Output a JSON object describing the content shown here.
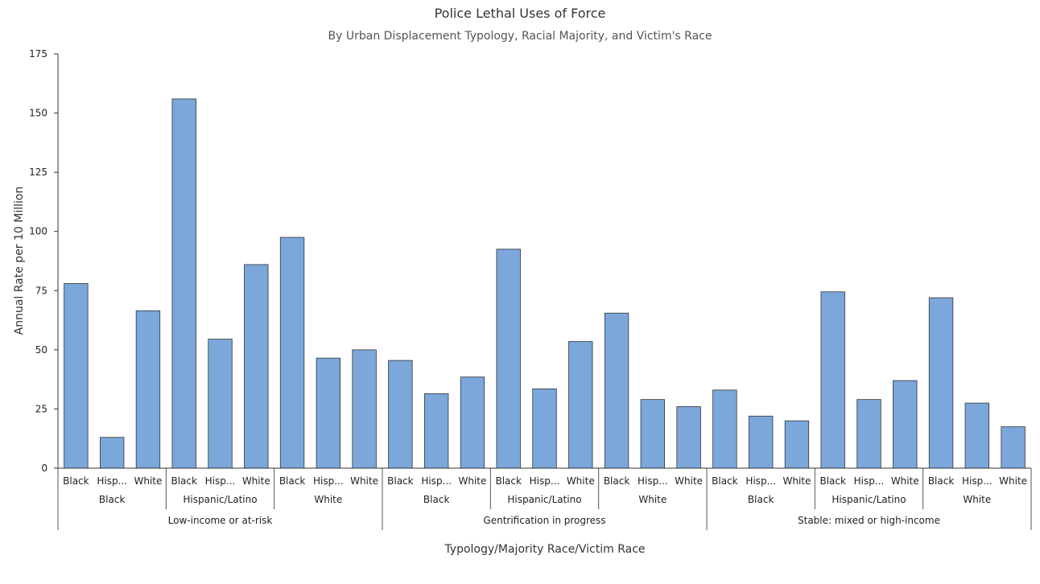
{
  "chart_data": {
    "type": "bar",
    "title": "Police Lethal Uses of Force",
    "subtitle": "By Urban Displacement Typology, Racial Majority, and Victim's Race",
    "xlabel": "Typology/Majority Race/Victim Race",
    "ylabel": "Annual Rate per 10 Million",
    "ylim": [
      0,
      175
    ],
    "yticks": [
      0,
      25,
      50,
      75,
      100,
      125,
      150,
      175
    ],
    "bar_color": "#7BA7DA",
    "bar_stroke": "#333333",
    "grid": false,
    "legend": "none",
    "groups": [
      {
        "typology": "Low-income or at-risk",
        "majorities": [
          {
            "majority": "Black",
            "bars": [
              {
                "victim": "Black",
                "value": 78
              },
              {
                "victim": "Hisp...",
                "value": 13
              },
              {
                "victim": "White",
                "value": 66.5
              }
            ]
          },
          {
            "majority": "Hispanic/Latino",
            "bars": [
              {
                "victim": "Black",
                "value": 156
              },
              {
                "victim": "Hisp...",
                "value": 54.5
              },
              {
                "victim": "White",
                "value": 86
              }
            ]
          },
          {
            "majority": "White",
            "bars": [
              {
                "victim": "Black",
                "value": 97.5
              },
              {
                "victim": "Hisp...",
                "value": 46.5
              },
              {
                "victim": "White",
                "value": 50
              }
            ]
          }
        ]
      },
      {
        "typology": "Gentrification in progress",
        "majorities": [
          {
            "majority": "Black",
            "bars": [
              {
                "victim": "Black",
                "value": 45.5
              },
              {
                "victim": "Hisp...",
                "value": 31.5
              },
              {
                "victim": "White",
                "value": 38.5
              }
            ]
          },
          {
            "majority": "Hispanic/Latino",
            "bars": [
              {
                "victim": "Black",
                "value": 92.5
              },
              {
                "victim": "Hisp...",
                "value": 33.5
              },
              {
                "victim": "White",
                "value": 53.5
              }
            ]
          },
          {
            "majority": "White",
            "bars": [
              {
                "victim": "Black",
                "value": 65.5
              },
              {
                "victim": "Hisp...",
                "value": 29
              },
              {
                "victim": "White",
                "value": 26
              }
            ]
          }
        ]
      },
      {
        "typology": "Stable: mixed or high-income",
        "majorities": [
          {
            "majority": "Black",
            "bars": [
              {
                "victim": "Black",
                "value": 33
              },
              {
                "victim": "Hisp...",
                "value": 22
              },
              {
                "victim": "White",
                "value": 20
              }
            ]
          },
          {
            "majority": "Hispanic/Latino",
            "bars": [
              {
                "victim": "Black",
                "value": 74.5
              },
              {
                "victim": "Hisp...",
                "value": 29
              },
              {
                "victim": "White",
                "value": 37
              }
            ]
          },
          {
            "majority": "White",
            "bars": [
              {
                "victim": "Black",
                "value": 72
              },
              {
                "victim": "Hisp...",
                "value": 27.5
              },
              {
                "victim": "White",
                "value": 17.5
              }
            ]
          }
        ]
      }
    ]
  }
}
